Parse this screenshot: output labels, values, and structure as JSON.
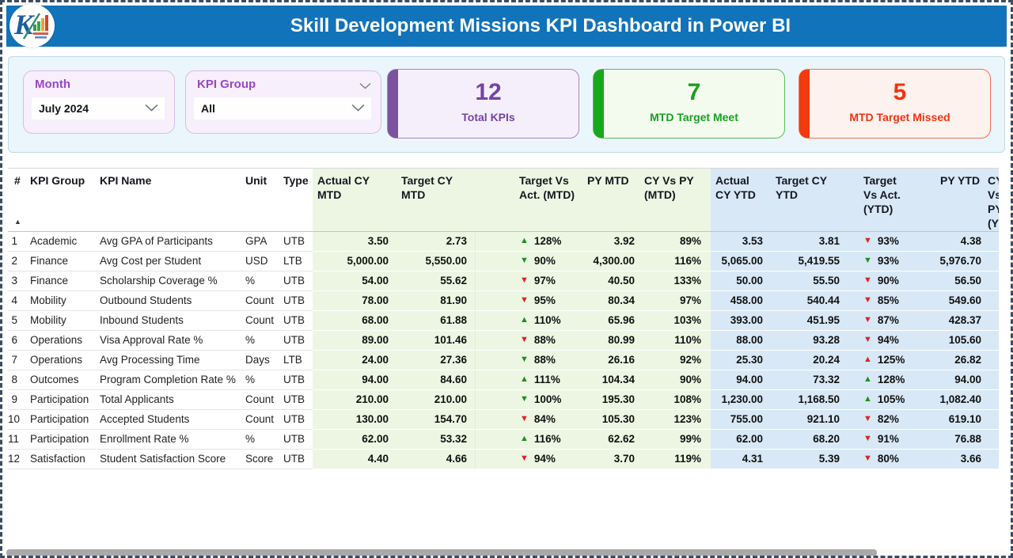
{
  "colors": {
    "header_bar": "#1173b9",
    "purple": "#7443a5",
    "green": "#1a9e22",
    "red": "#f03410",
    "mtd_zone_bg": "#ecf6e3",
    "ytd_zone_bg": "#d8e8f6",
    "good_arrow": "#189418",
    "bad_arrow": "#e32020"
  },
  "header": {
    "title": "Skill Development Missions KPI Dashboard in Power BI"
  },
  "filters": {
    "month": {
      "label": "Month",
      "value": "July 2024"
    },
    "kpi_group": {
      "label": "KPI Group",
      "value": "All"
    }
  },
  "cards": {
    "total": {
      "value": "12",
      "label": "Total KPIs"
    },
    "meet": {
      "value": "7",
      "label": "MTD Target Meet"
    },
    "missed": {
      "value": "5",
      "label": "MTD Target Missed"
    }
  },
  "table": {
    "sort_icon": "▲",
    "icons": {
      "up": "▲",
      "down": "▼"
    },
    "columns": {
      "num": "#",
      "group": "KPI Group",
      "name": "KPI Name",
      "unit": "Unit",
      "type": "Type",
      "actual_mtd": "Actual CY MTD",
      "target_mtd": "Target CY MTD",
      "tva_mtd": "Target Vs Act. (MTD)",
      "py_mtd": "PY MTD",
      "cyvspy_mtd": "CY Vs PY (MTD)",
      "actual_ytd": "Actual CY YTD",
      "target_ytd": "Target CY YTD",
      "tva_ytd": "Target Vs Act. (YTD)",
      "py_ytd": "PY YTD",
      "cyvspy_ytd": "CY Vs PY (YTD)"
    },
    "rows": [
      {
        "num": "1",
        "group": "Academic",
        "name": "Avg GPA of Participants",
        "unit": "GPA",
        "type": "UTB",
        "actual_mtd": "3.50",
        "target_mtd": "2.73",
        "tva_mtd": {
          "dir": "up",
          "good": true,
          "pct": "128%"
        },
        "py_mtd": "3.92",
        "cyvspy_mtd": "89%",
        "actual_ytd": "3.53",
        "target_ytd": "3.81",
        "tva_ytd": {
          "dir": "down",
          "good": false,
          "pct": "93%"
        },
        "py_ytd": "4.38",
        "cyvspy_ytd": ""
      },
      {
        "num": "2",
        "group": "Finance",
        "name": "Avg Cost per Student",
        "unit": "USD",
        "type": "LTB",
        "actual_mtd": "5,000.00",
        "target_mtd": "5,550.00",
        "tva_mtd": {
          "dir": "down",
          "good": true,
          "pct": "90%"
        },
        "py_mtd": "4,300.00",
        "cyvspy_mtd": "116%",
        "actual_ytd": "5,065.00",
        "target_ytd": "5,419.55",
        "tva_ytd": {
          "dir": "down",
          "good": true,
          "pct": "93%"
        },
        "py_ytd": "5,976.70",
        "cyvspy_ytd": ""
      },
      {
        "num": "3",
        "group": "Finance",
        "name": "Scholarship Coverage %",
        "unit": "%",
        "type": "UTB",
        "actual_mtd": "54.00",
        "target_mtd": "55.62",
        "tva_mtd": {
          "dir": "down",
          "good": false,
          "pct": "97%"
        },
        "py_mtd": "40.50",
        "cyvspy_mtd": "133%",
        "actual_ytd": "50.00",
        "target_ytd": "55.50",
        "tva_ytd": {
          "dir": "down",
          "good": false,
          "pct": "90%"
        },
        "py_ytd": "56.50",
        "cyvspy_ytd": ""
      },
      {
        "num": "4",
        "group": "Mobility",
        "name": "Outbound Students",
        "unit": "Count",
        "type": "UTB",
        "actual_mtd": "78.00",
        "target_mtd": "81.90",
        "tva_mtd": {
          "dir": "down",
          "good": false,
          "pct": "95%"
        },
        "py_mtd": "80.34",
        "cyvspy_mtd": "97%",
        "actual_ytd": "458.00",
        "target_ytd": "540.44",
        "tva_ytd": {
          "dir": "down",
          "good": false,
          "pct": "85%"
        },
        "py_ytd": "549.60",
        "cyvspy_ytd": ""
      },
      {
        "num": "5",
        "group": "Mobility",
        "name": "Inbound Students",
        "unit": "Count",
        "type": "UTB",
        "actual_mtd": "68.00",
        "target_mtd": "61.88",
        "tva_mtd": {
          "dir": "up",
          "good": true,
          "pct": "110%"
        },
        "py_mtd": "65.96",
        "cyvspy_mtd": "103%",
        "actual_ytd": "393.00",
        "target_ytd": "451.95",
        "tva_ytd": {
          "dir": "down",
          "good": false,
          "pct": "87%"
        },
        "py_ytd": "428.37",
        "cyvspy_ytd": ""
      },
      {
        "num": "6",
        "group": "Operations",
        "name": "Visa Approval Rate %",
        "unit": "%",
        "type": "UTB",
        "actual_mtd": "89.00",
        "target_mtd": "101.46",
        "tva_mtd": {
          "dir": "down",
          "good": false,
          "pct": "88%"
        },
        "py_mtd": "80.99",
        "cyvspy_mtd": "110%",
        "actual_ytd": "88.00",
        "target_ytd": "93.28",
        "tva_ytd": {
          "dir": "down",
          "good": false,
          "pct": "94%"
        },
        "py_ytd": "105.60",
        "cyvspy_ytd": ""
      },
      {
        "num": "7",
        "group": "Operations",
        "name": "Avg Processing Time",
        "unit": "Days",
        "type": "LTB",
        "actual_mtd": "24.00",
        "target_mtd": "27.36",
        "tva_mtd": {
          "dir": "down",
          "good": true,
          "pct": "88%"
        },
        "py_mtd": "26.16",
        "cyvspy_mtd": "92%",
        "actual_ytd": "25.30",
        "target_ytd": "20.24",
        "tva_ytd": {
          "dir": "up",
          "good": false,
          "pct": "125%"
        },
        "py_ytd": "26.82",
        "cyvspy_ytd": ""
      },
      {
        "num": "8",
        "group": "Outcomes",
        "name": "Program Completion Rate %",
        "unit": "%",
        "type": "UTB",
        "actual_mtd": "94.00",
        "target_mtd": "84.60",
        "tva_mtd": {
          "dir": "up",
          "good": true,
          "pct": "111%"
        },
        "py_mtd": "104.34",
        "cyvspy_mtd": "90%",
        "actual_ytd": "94.00",
        "target_ytd": "73.32",
        "tva_ytd": {
          "dir": "up",
          "good": true,
          "pct": "128%"
        },
        "py_ytd": "94.00",
        "cyvspy_ytd": ""
      },
      {
        "num": "9",
        "group": "Participation",
        "name": "Total Applicants",
        "unit": "Count",
        "type": "UTB",
        "actual_mtd": "210.00",
        "target_mtd": "210.00",
        "tva_mtd": {
          "dir": "down",
          "good": true,
          "pct": "100%"
        },
        "py_mtd": "195.30",
        "cyvspy_mtd": "108%",
        "actual_ytd": "1,230.00",
        "target_ytd": "1,168.50",
        "tva_ytd": {
          "dir": "up",
          "good": true,
          "pct": "105%"
        },
        "py_ytd": "1,082.40",
        "cyvspy_ytd": ""
      },
      {
        "num": "10",
        "group": "Participation",
        "name": "Accepted Students",
        "unit": "Count",
        "type": "UTB",
        "actual_mtd": "130.00",
        "target_mtd": "154.70",
        "tva_mtd": {
          "dir": "down",
          "good": false,
          "pct": "84%"
        },
        "py_mtd": "105.30",
        "cyvspy_mtd": "123%",
        "actual_ytd": "755.00",
        "target_ytd": "921.10",
        "tva_ytd": {
          "dir": "down",
          "good": false,
          "pct": "82%"
        },
        "py_ytd": "619.10",
        "cyvspy_ytd": ""
      },
      {
        "num": "11",
        "group": "Participation",
        "name": "Enrollment Rate %",
        "unit": "%",
        "type": "UTB",
        "actual_mtd": "62.00",
        "target_mtd": "53.32",
        "tva_mtd": {
          "dir": "up",
          "good": true,
          "pct": "116%"
        },
        "py_mtd": "62.62",
        "cyvspy_mtd": "99%",
        "actual_ytd": "62.00",
        "target_ytd": "68.20",
        "tva_ytd": {
          "dir": "down",
          "good": false,
          "pct": "91%"
        },
        "py_ytd": "76.88",
        "cyvspy_ytd": ""
      },
      {
        "num": "12",
        "group": "Satisfaction",
        "name": "Student Satisfaction Score",
        "unit": "Score",
        "type": "UTB",
        "actual_mtd": "4.40",
        "target_mtd": "4.66",
        "tva_mtd": {
          "dir": "down",
          "good": false,
          "pct": "94%"
        },
        "py_mtd": "3.70",
        "cyvspy_mtd": "119%",
        "actual_ytd": "4.31",
        "target_ytd": "5.39",
        "tva_ytd": {
          "dir": "down",
          "good": false,
          "pct": "80%"
        },
        "py_ytd": "3.66",
        "cyvspy_ytd": ""
      }
    ]
  }
}
